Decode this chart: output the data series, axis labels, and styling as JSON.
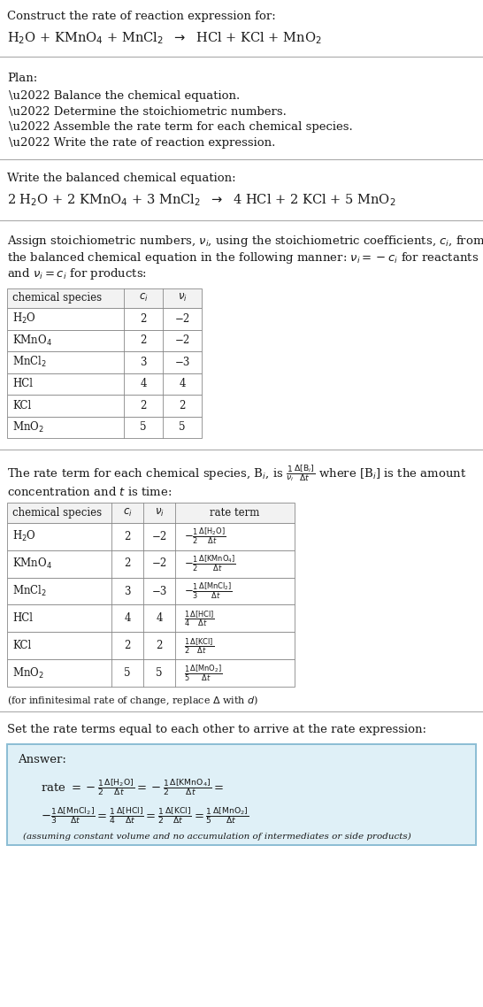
{
  "bg_color": "#ffffff",
  "text_color": "#1a1a1a",
  "title_line1": "Construct the rate of reaction expression for:",
  "title_line2": "H$_2$O + KMnO$_4$ + MnCl$_2$  $\\rightarrow$  HCl + KCl + MnO$_2$",
  "plan_title": "Plan:",
  "plan_items": [
    "\\u2022 Balance the chemical equation.",
    "\\u2022 Determine the stoichiometric numbers.",
    "\\u2022 Assemble the rate term for each chemical species.",
    "\\u2022 Write the rate of reaction expression."
  ],
  "balanced_label": "Write the balanced chemical equation:",
  "balanced_eq": "2 H$_2$O + 2 KMnO$_4$ + 3 MnCl$_2$  $\\rightarrow$  4 HCl + 2 KCl + 5 MnO$_2$",
  "assign_text_lines": [
    "Assign stoichiometric numbers, $\\nu_i$, using the stoichiometric coefficients, $c_i$, from",
    "the balanced chemical equation in the following manner: $\\nu_i = -c_i$ for reactants",
    "and $\\nu_i = c_i$ for products:"
  ],
  "table1_headers": [
    "chemical species",
    "$c_i$",
    "$\\nu_i$"
  ],
  "table1_data": [
    [
      "H$_2$O",
      "2",
      "−2"
    ],
    [
      "KMnO$_4$",
      "2",
      "−2"
    ],
    [
      "MnCl$_2$",
      "3",
      "−3"
    ],
    [
      "HCl",
      "4",
      "4"
    ],
    [
      "KCl",
      "2",
      "2"
    ],
    [
      "MnO$_2$",
      "5",
      "5"
    ]
  ],
  "rate_text_line1": "The rate term for each chemical species, B$_i$, is $\\frac{1}{\\nu_i}\\frac{\\Delta[\\mathrm{B}_i]}{\\Delta t}$ where [B$_i$] is the amount",
  "rate_text_line2": "concentration and $t$ is time:",
  "table2_headers": [
    "chemical species",
    "$c_i$",
    "$\\nu_i$",
    "rate term"
  ],
  "table2_data": [
    [
      "H$_2$O",
      "2",
      "−2",
      "$-\\frac{1}{2}\\frac{\\Delta[\\mathrm{H_2O}]}{\\Delta t}$"
    ],
    [
      "KMnO$_4$",
      "2",
      "−2",
      "$-\\frac{1}{2}\\frac{\\Delta[\\mathrm{KMnO_4}]}{\\Delta t}$"
    ],
    [
      "MnCl$_2$",
      "3",
      "−3",
      "$-\\frac{1}{3}\\frac{\\Delta[\\mathrm{MnCl_2}]}{\\Delta t}$"
    ],
    [
      "HCl",
      "4",
      "4",
      "$\\frac{1}{4}\\frac{\\Delta[\\mathrm{HCl}]}{\\Delta t}$"
    ],
    [
      "KCl",
      "2",
      "2",
      "$\\frac{1}{2}\\frac{\\Delta[\\mathrm{KCl}]}{\\Delta t}$"
    ],
    [
      "MnO$_2$",
      "5",
      "5",
      "$\\frac{1}{5}\\frac{\\Delta[\\mathrm{MnO_2}]}{\\Delta t}$"
    ]
  ],
  "infinitesimal_note": "(for infinitesimal rate of change, replace $\\Delta$ with $d$)",
  "set_text": "Set the rate terms equal to each other to arrive at the rate expression:",
  "answer_box_color": "#dff0f7",
  "answer_border_color": "#8bbdd4",
  "answer_title": "Answer:",
  "answer_line1": "rate $= -\\frac{1}{2}\\frac{\\Delta[\\mathrm{H_2O}]}{\\Delta t} = -\\frac{1}{2}\\frac{\\Delta[\\mathrm{KMnO_4}]}{\\Delta t} =$",
  "answer_line2": "$-\\frac{1}{3}\\frac{\\Delta[\\mathrm{MnCl_2}]}{\\Delta t} = \\frac{1}{4}\\frac{\\Delta[\\mathrm{HCl}]}{\\Delta t} = \\frac{1}{2}\\frac{\\Delta[\\mathrm{KCl}]}{\\Delta t} = \\frac{1}{5}\\frac{\\Delta[\\mathrm{MnO_2}]}{\\Delta t}$",
  "answer_note": "(assuming constant volume and no accumulation of intermediates or side products)"
}
